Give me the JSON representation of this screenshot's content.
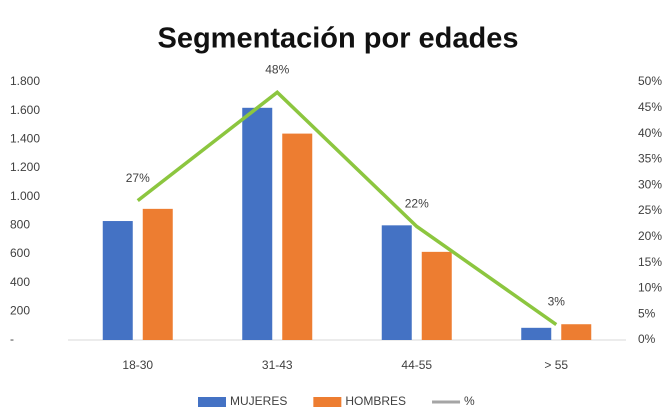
{
  "chart_data": {
    "type": "bar",
    "title": "Segmentación por edades",
    "categories": [
      "18-30",
      "31-43",
      "44-55",
      "> 55"
    ],
    "series": [
      {
        "name": "MUJERES",
        "color": "#4472c4",
        "values": [
          830,
          1620,
          800,
          85
        ]
      },
      {
        "name": "HOMBRES",
        "color": "#ed7d31",
        "values": [
          915,
          1440,
          615,
          110
        ]
      },
      {
        "name": "%",
        "type": "line",
        "axis": "y2",
        "color": "#8cc63f",
        "legend_color": "#a5a5a5",
        "values": [
          27,
          48,
          22,
          3
        ],
        "value_labels": [
          "27%",
          "48%",
          "22%",
          "3%"
        ]
      }
    ],
    "ylim": [
      0,
      1800
    ],
    "yticks": [
      {
        "value": 0,
        "label": "-"
      },
      200,
      400,
      600,
      800,
      {
        "value": 1000,
        "label": "1.000"
      },
      {
        "value": 1200,
        "label": "1.200"
      },
      {
        "value": 1400,
        "label": "1.400"
      },
      {
        "value": 1600,
        "label": "1.600"
      },
      {
        "value": 1800,
        "label": "1.800"
      }
    ],
    "y2lim": [
      0,
      50
    ],
    "y2ticks": [
      {
        "value": 0,
        "label": "0%"
      },
      {
        "value": 5,
        "label": "5%"
      },
      {
        "value": 10,
        "label": "10%"
      },
      {
        "value": 15,
        "label": "15%"
      },
      {
        "value": 20,
        "label": "20%"
      },
      {
        "value": 25,
        "label": "25%"
      },
      {
        "value": 30,
        "label": "30%"
      },
      {
        "value": 35,
        "label": "35%"
      },
      {
        "value": 40,
        "label": "40%"
      },
      {
        "value": 45,
        "label": "45%"
      },
      {
        "value": 50,
        "label": "50%"
      }
    ],
    "legend": "bottom"
  }
}
